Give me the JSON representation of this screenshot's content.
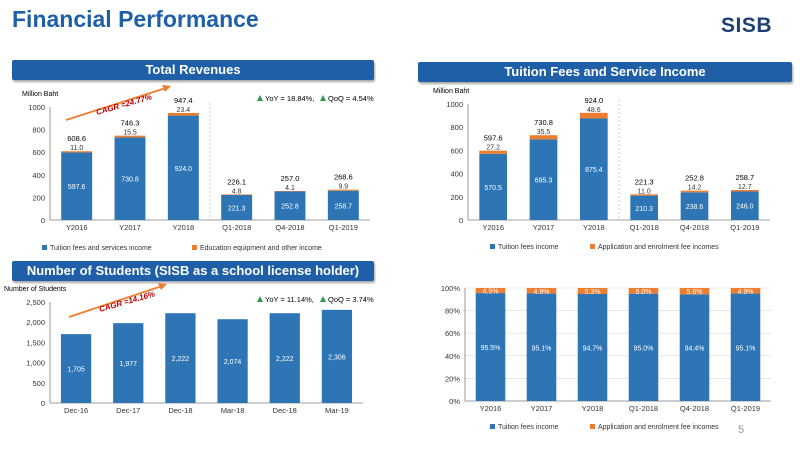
{
  "page": {
    "title": "Financial Performance",
    "logo": "SISB",
    "page_number": "5"
  },
  "colors": {
    "title": "#1f5fa8",
    "banner": "#1f5fa8",
    "series_main": "#2e75b6",
    "series_secondary": "#ed7d31",
    "yoy_marker": "#2e9b45",
    "cagr_text": "#c00000",
    "cagr_arrow": "#ed7d31",
    "divider": "#bfbfbf"
  },
  "chart_data": [
    {
      "id": "total-revenues",
      "type": "bar",
      "stacked": true,
      "title": "Total Revenues",
      "ylabel": "Million Baht",
      "ylim": [
        0,
        1000
      ],
      "yticks": [
        0,
        200,
        400,
        600,
        800,
        1000
      ],
      "categories": [
        "Y2016",
        "Y2017",
        "Y2018",
        "Q1-2018",
        "Q4-2018",
        "Q1-2019"
      ],
      "series": [
        {
          "name": "Tuition fees and services income",
          "values": [
            597.6,
            730.8,
            924.0,
            221.3,
            252.8,
            258.7
          ],
          "labels": [
            "597.6",
            "730.8",
            "924.0",
            "221.3",
            "252.8",
            "258.7"
          ]
        },
        {
          "name": "Education equipment and other income",
          "values": [
            11.0,
            15.5,
            23.4,
            4.8,
            4.1,
            9.9
          ],
          "labels": [
            "11.0",
            "15.5",
            "23.4",
            "4.8",
            "4.1",
            "9.9"
          ]
        }
      ],
      "totals": [
        "608.6",
        "746.3",
        "947.4",
        "226.1",
        "257.0",
        "268.6"
      ],
      "cagr": "CAGR =24.77%",
      "growth_yoy": "YoY = 18.84%,",
      "growth_qoq": "QoQ = 4.54%",
      "legend": "bottom"
    },
    {
      "id": "tuition-fees",
      "type": "bar",
      "stacked": true,
      "title": "Tuition Fees and Service Income",
      "ylabel": "Million Baht",
      "ylim": [
        0,
        1000
      ],
      "yticks": [
        0,
        200,
        400,
        600,
        800,
        1000
      ],
      "categories": [
        "Y2016",
        "Y2017",
        "Y2018",
        "Q1-2018",
        "Q4-2018",
        "Q1-2019"
      ],
      "series": [
        {
          "name": "Tuition fees income",
          "values": [
            570.5,
            695.3,
            875.4,
            210.3,
            238.6,
            246.0
          ],
          "labels": [
            "570.5",
            "695.3",
            "875.4",
            "210.3",
            "238.6",
            "246.0"
          ]
        },
        {
          "name": "Application and enrolment fee incomes",
          "values": [
            27.2,
            35.5,
            48.6,
            11.0,
            14.2,
            12.7
          ],
          "labels": [
            "27.2",
            "35.5",
            "48.6",
            "11.0",
            "14.2",
            "12.7"
          ]
        }
      ],
      "totals": [
        "597.6",
        "730.8",
        "924.0",
        "221.3",
        "252.8",
        "258.7"
      ],
      "legend": "bottom"
    },
    {
      "id": "students",
      "type": "bar",
      "title": "Number of Students (SISB as a school license holder)",
      "ylabel": "Number of Students",
      "ylim": [
        0,
        2500
      ],
      "yticks": [
        0,
        500,
        1000,
        1500,
        2000,
        2500
      ],
      "ytick_labels": [
        "0",
        "500",
        "1,000",
        "1,500",
        "2,000",
        "2,500"
      ],
      "categories": [
        "Dec-16",
        "Dec-17",
        "Dec-18",
        "Mar-18",
        "Dec-18",
        "Mar-19"
      ],
      "series": [
        {
          "values": [
            1705,
            1977,
            2222,
            2074,
            2222,
            2306
          ],
          "labels": [
            "1,705",
            "1,977",
            "2,222",
            "2,074",
            "2,222",
            "2,306"
          ]
        }
      ],
      "cagr": "CAGR =14.16%",
      "growth_yoy": "YoY = 11.14%,",
      "growth_qoq": "QoQ = 3.74%"
    },
    {
      "id": "tuition-mix",
      "type": "bar",
      "stacked": true,
      "percent": true,
      "ylim": [
        0,
        100
      ],
      "yticks": [
        0,
        20,
        40,
        60,
        80,
        100
      ],
      "ytick_labels": [
        "0%",
        "20%",
        "40%",
        "60%",
        "80%",
        "100%"
      ],
      "categories": [
        "Y2016",
        "Y2017",
        "Y2018",
        "Q1-2018",
        "Q4-2018",
        "Q1-2019"
      ],
      "series": [
        {
          "name": "Tuition fees income",
          "values": [
            95.5,
            95.1,
            94.7,
            95.0,
            94.4,
            95.1
          ],
          "labels": [
            "95.5%",
            "95.1%",
            "94.7%",
            "95.0%",
            "94.4%",
            "95.1%"
          ]
        },
        {
          "name": "Application and enrolment fee incomes",
          "values": [
            4.5,
            4.9,
            5.3,
            5.0,
            5.6,
            4.9
          ],
          "labels": [
            "4.5%",
            "4.9%",
            "5.3%",
            "5.0%",
            "5.6%",
            "4.9%"
          ]
        }
      ],
      "legend": "bottom"
    }
  ]
}
